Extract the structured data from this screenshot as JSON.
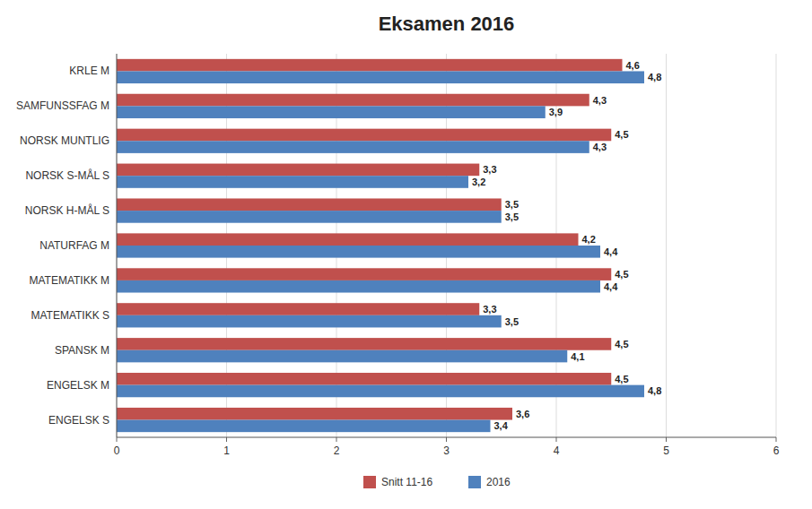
{
  "chart_data": {
    "type": "bar",
    "orientation": "horizontal",
    "title": "Eksamen 2016",
    "categories": [
      "KRLE M",
      "SAMFUNSSFAG M",
      "NORSK MUNTLIG",
      "NORSK S-MÅL S",
      "NORSK H-MÅL S",
      "NATURFAG M",
      "MATEMATIKK M",
      "MATEMATIKK S",
      "SPANSK M",
      "ENGELSK M",
      "ENGELSK S"
    ],
    "series": [
      {
        "name": "Snitt 11-16",
        "color": "#C0504D",
        "values": [
          4.6,
          4.3,
          4.5,
          3.3,
          3.5,
          4.2,
          4.5,
          3.3,
          4.5,
          4.5,
          3.6
        ],
        "value_labels": [
          "4,6",
          "4,3",
          "4,5",
          "3,3",
          "3,5",
          "4,2",
          "4,5",
          "3,3",
          "4,5",
          "4,5",
          "3,6"
        ]
      },
      {
        "name": "2016",
        "color": "#4F81BD",
        "values": [
          4.8,
          3.9,
          4.3,
          3.2,
          3.5,
          4.4,
          4.4,
          3.5,
          4.1,
          4.8,
          3.4
        ],
        "value_labels": [
          "4,8",
          "3,9",
          "4,3",
          "3,2",
          "3,5",
          "4,4",
          "4,4",
          "3,5",
          "4,1",
          "4,8",
          "3,4"
        ]
      }
    ],
    "xlim": [
      0,
      6
    ],
    "xticks": [
      0,
      1,
      2,
      3,
      4,
      5,
      6
    ],
    "grid": true,
    "legend": "bottom",
    "data_labels": true
  }
}
